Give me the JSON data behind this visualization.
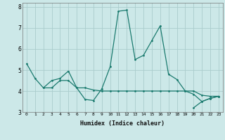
{
  "xlabel": "Humidex (Indice chaleur)",
  "background_color": "#cce8e8",
  "grid_color": "#aacccc",
  "line_color": "#1a7a6e",
  "xlim": [
    -0.5,
    23.5
  ],
  "ylim": [
    3,
    8.2
  ],
  "yticks": [
    3,
    4,
    5,
    6,
    7,
    8
  ],
  "xticks": [
    0,
    1,
    2,
    3,
    4,
    5,
    6,
    7,
    8,
    9,
    10,
    11,
    12,
    13,
    14,
    15,
    16,
    17,
    18,
    19,
    20,
    21,
    22,
    23
  ],
  "series": [
    [
      5.3,
      4.6,
      4.15,
      4.15,
      4.5,
      4.5,
      4.15,
      3.6,
      3.55,
      4.1,
      5.15,
      7.8,
      7.85,
      5.5,
      5.7,
      6.4,
      7.1,
      4.8,
      4.55,
      4.0,
      4.0,
      3.8,
      3.75,
      3.75
    ],
    [
      null,
      null,
      4.15,
      4.5,
      4.6,
      4.95,
      4.15,
      4.15,
      4.05,
      4.0,
      4.0,
      4.0,
      4.0,
      4.0,
      4.0,
      4.0,
      4.0,
      4.0,
      4.0,
      4.0,
      3.85,
      3.5,
      3.65,
      3.75
    ],
    [
      null,
      null,
      null,
      null,
      null,
      null,
      null,
      null,
      null,
      null,
      null,
      null,
      null,
      null,
      null,
      null,
      null,
      null,
      null,
      null,
      3.2,
      3.5,
      3.65,
      3.75
    ]
  ]
}
